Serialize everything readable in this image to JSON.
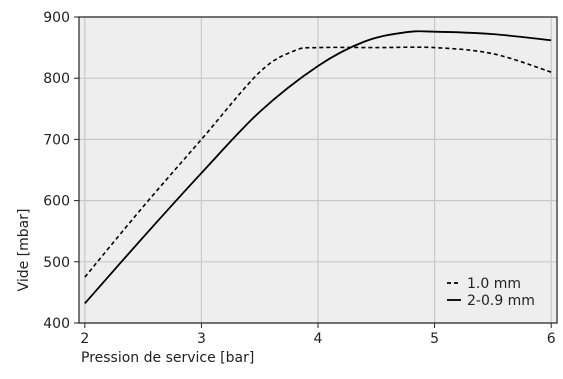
{
  "chart_data": {
    "type": "line",
    "title": "",
    "xlabel": "Pression de service [bar]",
    "ylabel": "Vide [mbar]",
    "xlim": [
      1.95,
      6.05
    ],
    "ylim": [
      400,
      900
    ],
    "xticks": [
      2,
      3,
      4,
      5,
      6
    ],
    "yticks": [
      400,
      500,
      600,
      700,
      800,
      900
    ],
    "xtick_labels": [
      "2",
      "3",
      "4",
      "5",
      "6"
    ],
    "ytick_labels": [
      "400",
      "500",
      "600",
      "700",
      "800",
      "900"
    ],
    "grid": true,
    "legend_position": "bottom-right",
    "colors": {
      "plot_background": "#eeeeee",
      "grid": "#c8c8c8",
      "axis": "#222222",
      "line": "#000000"
    },
    "series": [
      {
        "name": "1.0 mm",
        "style": "dashed",
        "x": [
          2.0,
          2.5,
          3.0,
          3.5,
          3.8,
          4.0,
          4.5,
          5.0,
          5.5,
          6.0
        ],
        "y": [
          475,
          590,
          700,
          810,
          845,
          850,
          850,
          850,
          840,
          810
        ]
      },
      {
        "name": "2-0.9 mm",
        "style": "solid",
        "x": [
          2.0,
          2.5,
          3.0,
          3.5,
          4.0,
          4.4,
          4.75,
          5.0,
          5.5,
          6.0
        ],
        "y": [
          432,
          540,
          645,
          745,
          820,
          860,
          875,
          876,
          872,
          862
        ]
      }
    ]
  }
}
